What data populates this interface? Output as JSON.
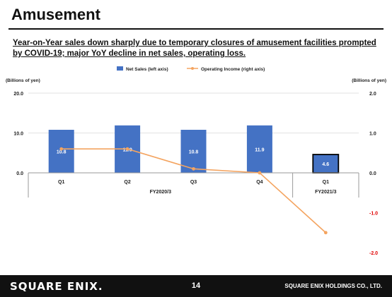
{
  "page": {
    "title": "Amusement",
    "subtitle": "Year-on-Year sales down sharply due to temporary closures of amusement facilities prompted by COVID-19; major YoY decline in net sales, operating loss."
  },
  "footer": {
    "logo": "SQUARE ENIX.",
    "page_number": "14",
    "company": "SQUARE ENIX HOLDINGS CO., LTD."
  },
  "chart_data": {
    "type": "bar",
    "categories": [
      "Q1",
      "Q2",
      "Q3",
      "Q4",
      "Q1"
    ],
    "groups": [
      {
        "label": "FY2020/3",
        "start": 0,
        "end": 3
      },
      {
        "label": "FY2021/3",
        "start": 4,
        "end": 4
      }
    ],
    "series": [
      {
        "name": "Net Sales (left axis)",
        "type": "bar",
        "axis": "left",
        "values": [
          10.8,
          11.9,
          10.8,
          11.9,
          4.6
        ],
        "color": "#4472c4",
        "highlight_index": 4
      },
      {
        "name": "Operating Income (right axis)",
        "type": "line",
        "axis": "right",
        "values": [
          0.6,
          0.6,
          0.1,
          0.0,
          -1.5
        ],
        "color": "#f4a460"
      }
    ],
    "left_axis": {
      "label": "(Billions of yen)",
      "ylim": [
        0,
        20
      ],
      "ticks": [
        "0.0",
        "10.0",
        "20.0"
      ]
    },
    "right_axis": {
      "label": "(Billions of yen)",
      "ylim": [
        -2,
        2
      ],
      "ticks": [
        "2.0",
        "1.0",
        "0.0",
        "-1.0",
        "-2.0"
      ],
      "negative_color": "#e00000"
    },
    "legend": "top-center"
  }
}
